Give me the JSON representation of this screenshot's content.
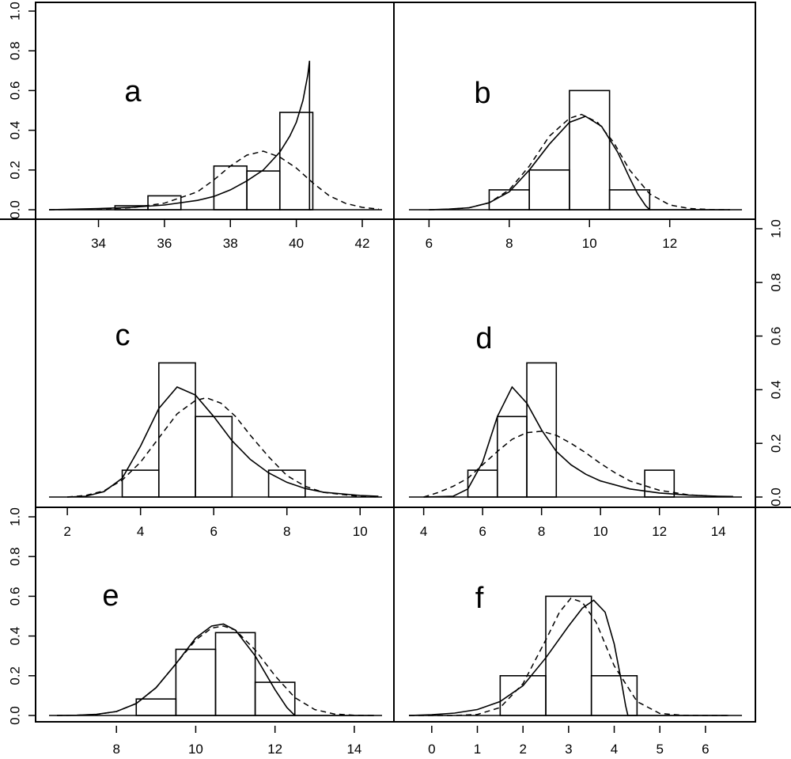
{
  "chart_data": [
    {
      "panel": "a",
      "type": "bar",
      "xlim": [
        32.5,
        42.6
      ],
      "ylim": [
        0,
        1
      ],
      "xticks": [
        34,
        36,
        38,
        40,
        42
      ],
      "yticks": [
        0.0,
        0.2,
        0.4,
        0.6,
        0.8,
        1.0
      ],
      "bins": [
        {
          "x0": 34.5,
          "x1": 35.5,
          "value": 0.02
        },
        {
          "x0": 35.5,
          "x1": 36.5,
          "value": 0.07
        },
        {
          "x0": 37.5,
          "x1": 38.5,
          "value": 0.22
        },
        {
          "x0": 38.5,
          "x1": 39.5,
          "value": 0.195
        },
        {
          "x0": 39.5,
          "x1": 40.5,
          "value": 0.49
        }
      ],
      "solid_curve": {
        "x": [
          32.5,
          33,
          34,
          35,
          36,
          37,
          37.5,
          38,
          38.5,
          39,
          39.5,
          39.8,
          40,
          40.2,
          40.35,
          40.4,
          40.4,
          40.45
        ],
        "y": [
          0.0,
          0.002,
          0.006,
          0.012,
          0.024,
          0.047,
          0.067,
          0.1,
          0.145,
          0.2,
          0.29,
          0.37,
          0.44,
          0.55,
          0.68,
          0.75,
          0.0,
          0.0
        ]
      },
      "dashed_curve": {
        "x": [
          32.5,
          33,
          34,
          35,
          36,
          37,
          37.5,
          38,
          38.5,
          39,
          39.5,
          40,
          40.5,
          41,
          41.5,
          42,
          42.5
        ],
        "y": [
          0.0,
          0.001,
          0.003,
          0.01,
          0.033,
          0.09,
          0.15,
          0.22,
          0.275,
          0.295,
          0.265,
          0.21,
          0.135,
          0.07,
          0.032,
          0.012,
          0.003
        ]
      }
    },
    {
      "panel": "b",
      "type": "bar",
      "xlim": [
        5.5,
        13.8
      ],
      "ylim": [
        0,
        1
      ],
      "xticks": [
        6,
        8,
        10,
        12
      ],
      "yticks": [
        0.0,
        0.2,
        0.4,
        0.6,
        0.8,
        1.0
      ],
      "bins": [
        {
          "x0": 7.5,
          "x1": 8.5,
          "value": 0.1
        },
        {
          "x0": 8.5,
          "x1": 9.5,
          "value": 0.2
        },
        {
          "x0": 9.5,
          "x1": 10.5,
          "value": 0.6
        },
        {
          "x0": 10.5,
          "x1": 11.5,
          "value": 0.1
        }
      ],
      "solid_curve": {
        "x": [
          6,
          6.5,
          7,
          7.5,
          8,
          8.5,
          9,
          9.5,
          9.9,
          10.3,
          10.7,
          11,
          11.2,
          11.4,
          11.5,
          13.5
        ],
        "y": [
          0.0,
          0.003,
          0.01,
          0.035,
          0.09,
          0.2,
          0.33,
          0.44,
          0.47,
          0.42,
          0.29,
          0.16,
          0.08,
          0.02,
          0.0,
          0.0
        ]
      },
      "dashed_curve": {
        "x": [
          6,
          6.5,
          7,
          7.5,
          8,
          8.5,
          9,
          9.5,
          9.8,
          10.2,
          10.6,
          11,
          11.5,
          12,
          12.5,
          13,
          13.5
        ],
        "y": [
          0.0,
          0.002,
          0.01,
          0.035,
          0.1,
          0.22,
          0.37,
          0.46,
          0.48,
          0.44,
          0.34,
          0.2,
          0.08,
          0.024,
          0.006,
          0.001,
          0.0
        ]
      }
    },
    {
      "panel": "c",
      "type": "bar",
      "xlim": [
        1.5,
        10.6
      ],
      "ylim": [
        0,
        1
      ],
      "xticks": [
        2,
        4,
        6,
        8,
        10
      ],
      "yticks": [],
      "bins": [
        {
          "x0": 3.5,
          "x1": 4.5,
          "value": 0.1
        },
        {
          "x0": 4.5,
          "x1": 5.5,
          "value": 0.5
        },
        {
          "x0": 5.5,
          "x1": 6.5,
          "value": 0.3
        },
        {
          "x0": 7.5,
          "x1": 8.5,
          "value": 0.1
        }
      ],
      "solid_curve": {
        "x": [
          2,
          2.5,
          3,
          3.5,
          4,
          4.5,
          5,
          5.5,
          6,
          6.5,
          7,
          7.5,
          8,
          8.5,
          9,
          10,
          10.5
        ],
        "y": [
          0.0,
          0.003,
          0.02,
          0.07,
          0.19,
          0.33,
          0.41,
          0.38,
          0.3,
          0.21,
          0.14,
          0.09,
          0.055,
          0.032,
          0.018,
          0.006,
          0.003
        ]
      },
      "dashed_curve": {
        "x": [
          2,
          2.5,
          3,
          3.5,
          4,
          4.5,
          5,
          5.5,
          5.8,
          6.2,
          6.6,
          7,
          7.5,
          8,
          8.5,
          9,
          10,
          10.5
        ],
        "y": [
          0.0,
          0.006,
          0.023,
          0.063,
          0.13,
          0.22,
          0.31,
          0.36,
          0.37,
          0.35,
          0.3,
          0.23,
          0.15,
          0.08,
          0.04,
          0.017,
          0.002,
          0.0
        ]
      }
    },
    {
      "panel": "d",
      "type": "bar",
      "xlim": [
        3.5,
        14.8
      ],
      "ylim": [
        0,
        1
      ],
      "xticks": [
        4,
        6,
        8,
        10,
        12,
        14
      ],
      "yticks": [
        0.0,
        0.2,
        0.4,
        0.6,
        0.8,
        1.0
      ],
      "bins": [
        {
          "x0": 5.5,
          "x1": 6.5,
          "value": 0.1
        },
        {
          "x0": 6.5,
          "x1": 7.5,
          "value": 0.3
        },
        {
          "x0": 7.5,
          "x1": 8.5,
          "value": 0.5
        },
        {
          "x0": 11.5,
          "x1": 12.5,
          "value": 0.1
        }
      ],
      "solid_curve": {
        "x": [
          4,
          5,
          5.5,
          6,
          6.5,
          7,
          7.5,
          8,
          8.5,
          9,
          9.5,
          10,
          11,
          12,
          13,
          14,
          14.5
        ],
        "y": [
          0.0,
          0.003,
          0.03,
          0.13,
          0.3,
          0.41,
          0.35,
          0.25,
          0.17,
          0.12,
          0.085,
          0.06,
          0.03,
          0.015,
          0.007,
          0.003,
          0.002
        ]
      },
      "dashed_curve": {
        "x": [
          4,
          4.5,
          5,
          5.5,
          6,
          6.5,
          7,
          7.5,
          8,
          8.5,
          9,
          9.5,
          10,
          10.5,
          11,
          12,
          13,
          14,
          14.5
        ],
        "y": [
          0.0,
          0.017,
          0.04,
          0.07,
          0.12,
          0.17,
          0.215,
          0.24,
          0.245,
          0.23,
          0.2,
          0.165,
          0.125,
          0.09,
          0.06,
          0.025,
          0.008,
          0.002,
          0.001
        ]
      }
    },
    {
      "panel": "e",
      "type": "bar",
      "xlim": [
        6.3,
        14.7
      ],
      "ylim": [
        0,
        1
      ],
      "xticks": [
        8,
        10,
        12,
        14
      ],
      "yticks": [
        0.0,
        0.2,
        0.4,
        0.6,
        0.8,
        1.0
      ],
      "bins": [
        {
          "x0": 8.5,
          "x1": 9.5,
          "value": 0.083
        },
        {
          "x0": 9.5,
          "x1": 10.5,
          "value": 0.333
        },
        {
          "x0": 10.5,
          "x1": 11.5,
          "value": 0.417
        },
        {
          "x0": 11.5,
          "x1": 12.5,
          "value": 0.167
        }
      ],
      "solid_curve": {
        "x": [
          6.5,
          7,
          7.5,
          8,
          8.5,
          9,
          9.5,
          10,
          10.4,
          10.7,
          11,
          11.5,
          12,
          12.3,
          12.5,
          14.5
        ],
        "y": [
          0.0,
          0.001,
          0.006,
          0.02,
          0.06,
          0.14,
          0.26,
          0.39,
          0.45,
          0.46,
          0.43,
          0.3,
          0.13,
          0.04,
          0.0,
          0.0
        ]
      },
      "dashed_curve": {
        "x": [
          6.5,
          7,
          7.5,
          8,
          8.5,
          9,
          9.5,
          10,
          10.4,
          10.7,
          11,
          11.5,
          12,
          12.5,
          13,
          13.5,
          14,
          14.5
        ],
        "y": [
          0.0,
          0.001,
          0.005,
          0.02,
          0.06,
          0.14,
          0.26,
          0.38,
          0.44,
          0.45,
          0.43,
          0.33,
          0.2,
          0.09,
          0.03,
          0.007,
          0.001,
          0.0
        ]
      }
    },
    {
      "panel": "f",
      "type": "bar",
      "xlim": [
        -0.5,
        6.8
      ],
      "ylim": [
        0,
        1
      ],
      "xticks": [
        0,
        1,
        2,
        3,
        4,
        5,
        6
      ],
      "yticks": [],
      "bins": [
        {
          "x0": 1.5,
          "x1": 2.5,
          "value": 0.2
        },
        {
          "x0": 2.5,
          "x1": 3.5,
          "value": 0.6
        },
        {
          "x0": 3.5,
          "x1": 4.5,
          "value": 0.2
        }
      ],
      "solid_curve": {
        "x": [
          -0.5,
          0,
          0.5,
          1,
          1.5,
          2,
          2.5,
          3,
          3.3,
          3.55,
          3.8,
          4,
          4.15,
          4.25,
          4.3,
          6.5
        ],
        "y": [
          0.0,
          0.004,
          0.012,
          0.03,
          0.07,
          0.15,
          0.29,
          0.45,
          0.54,
          0.58,
          0.52,
          0.36,
          0.18,
          0.05,
          0.0,
          0.0
        ]
      },
      "dashed_curve": {
        "x": [
          -0.5,
          0.5,
          1,
          1.5,
          2,
          2.5,
          2.8,
          3.05,
          3.3,
          3.6,
          4,
          4.5,
          5,
          5.5,
          6,
          6.5
        ],
        "y": [
          0.0,
          0.0,
          0.005,
          0.04,
          0.16,
          0.38,
          0.52,
          0.59,
          0.57,
          0.47,
          0.25,
          0.07,
          0.01,
          0.001,
          0.0,
          0.0
        ]
      }
    }
  ]
}
